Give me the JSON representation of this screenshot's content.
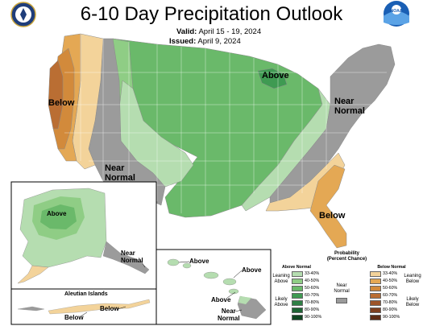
{
  "title": "6-10 Day Precipitation Outlook",
  "valid_label": "Valid:",
  "valid_value": "April 15 - 19, 2024",
  "issued_label": "Issued:",
  "issued_value": "April 9, 2024",
  "map_labels": {
    "above_great_lakes": "Above",
    "below_west": "Below",
    "near_normal_northeast": "Near\nNormal",
    "near_normal_southwest": "Near\nNormal",
    "below_southeast": "Below",
    "above_alaska": "Above",
    "near_normal_alaska": "Near\nNormal",
    "aleutian_title": "Aleutian Islands",
    "aleutian_below_1": "Below",
    "aleutian_below_2": "Below",
    "hawaii_above_1": "Above",
    "hawaii_above_2": "Above",
    "hawaii_above_3": "Above",
    "hawaii_near_normal": "Near\nNormal"
  },
  "legend": {
    "title": "Probability\n(Percent Chance)",
    "above_header": "Above Normal",
    "below_header": "Below Normal",
    "leaning_above": "Leaning\nAbove",
    "likely_above": "Likely\nAbove",
    "near_normal": "Near\nNormal",
    "leaning_below": "Leaning\nBelow",
    "likely_below": "Likely\nBelow",
    "ranges": [
      "33-40%",
      "40-50%",
      "50-60%",
      "60-70%",
      "70-80%",
      "80-90%",
      "90-100%"
    ],
    "above_colors": [
      "#b5ddb0",
      "#8fcd85",
      "#6ab96a",
      "#3f9a52",
      "#2f7f45",
      "#1e6334",
      "#0f4421"
    ],
    "below_colors": [
      "#f3d39a",
      "#e4a854",
      "#d28a3b",
      "#ba6e33",
      "#9d5429",
      "#7f3f1f",
      "#5e2b14"
    ],
    "near_color": "#9b9b9b"
  },
  "colors": {
    "above_33": "#b5ddb0",
    "above_40": "#8fcd85",
    "above_50": "#6ab96a",
    "near": "#9b9b9b",
    "below_33": "#f3d39a",
    "below_40": "#e4a854",
    "below_50": "#d28a3b",
    "below_60": "#ba6e33"
  },
  "icons": [
    "department-of-commerce-seal-icon",
    "noaa-logo-icon"
  ]
}
